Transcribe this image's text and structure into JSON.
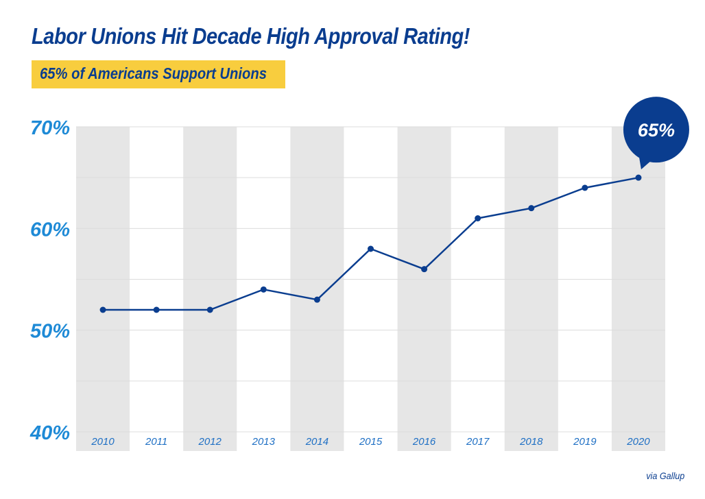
{
  "header": {
    "title": "Labor Unions Hit Decade High Approval Rating!",
    "subtitle": "65% of Americans Support Unions"
  },
  "footer": {
    "source": "via Gallup"
  },
  "colors": {
    "title": "#0a3d8f",
    "subtitle_bg": "#f8cd3e",
    "line": "#0a3d8f",
    "ytick": "#1e8ad6",
    "xtick": "#1e6fc4",
    "band": "#e6e6e6",
    "grid": "#dcdcdc"
  },
  "chart_data": {
    "type": "line",
    "categories": [
      "2010",
      "2011",
      "2012",
      "2013",
      "2014",
      "2015",
      "2016",
      "2017",
      "2018",
      "2019",
      "2020"
    ],
    "values": [
      52,
      52,
      52,
      54,
      53,
      58,
      56,
      61,
      62,
      64,
      65
    ],
    "ylim": [
      40,
      70
    ],
    "yticks": [
      40,
      50,
      60,
      70
    ],
    "ytick_labels": [
      "40%",
      "50%",
      "60%",
      "70%"
    ],
    "grid": true,
    "alternating_bands": true,
    "callout": {
      "category": "2020",
      "label": "65%"
    }
  }
}
